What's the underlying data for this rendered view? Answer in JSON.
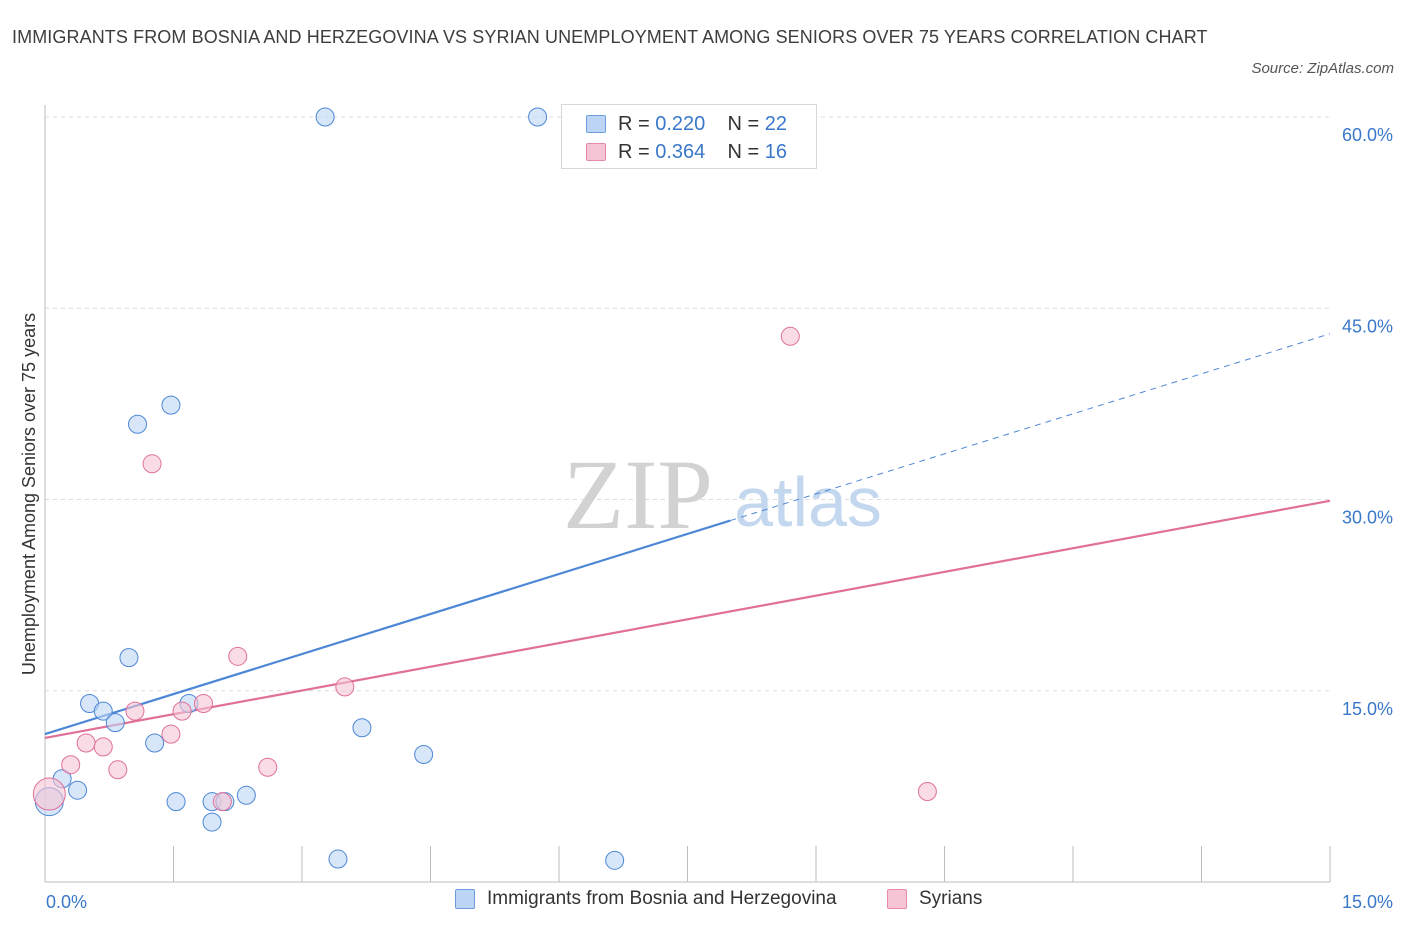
{
  "chart_data": {
    "type": "scatter",
    "title": "IMMIGRANTS FROM BOSNIA AND HERZEGOVINA VS SYRIAN UNEMPLOYMENT AMONG SENIORS OVER 75 YEARS CORRELATION CHART",
    "source": "Source: ZipAtlas.com",
    "watermark": {
      "zip": "ZIP",
      "atlas": "atlas"
    },
    "ylabel": "Unemployment Among Seniors over 75 years",
    "xlim": [
      0,
      15
    ],
    "ylim": [
      0,
      60
    ],
    "x_tick_labels": [
      "0.0%",
      "15.0%"
    ],
    "y_ticks": [
      {
        "value": 15,
        "label": "15.0%"
      },
      {
        "value": 30,
        "label": "30.0%"
      },
      {
        "value": 45,
        "label": "45.0%"
      },
      {
        "value": 60,
        "label": "60.0%"
      }
    ],
    "series": [
      {
        "name": "Immigrants from Bosnia and Herzegovina",
        "color": "#4d87d6",
        "fill": "#bcd5f4",
        "R": "0.220",
        "N": "22",
        "trend": {
          "x0": 0,
          "y0": 11.6,
          "x_solid_end": 8.0,
          "x1": 15,
          "y1": 43.0
        },
        "points": [
          {
            "x": 0.05,
            "y": 6.3,
            "s": 14
          },
          {
            "x": 0.2,
            "y": 8.1,
            "s": 9
          },
          {
            "x": 0.38,
            "y": 7.2,
            "s": 9
          },
          {
            "x": 0.52,
            "y": 14.0,
            "s": 9
          },
          {
            "x": 0.68,
            "y": 13.4,
            "s": 9
          },
          {
            "x": 0.82,
            "y": 12.5,
            "s": 9
          },
          {
            "x": 0.98,
            "y": 17.6,
            "s": 9
          },
          {
            "x": 1.08,
            "y": 35.9,
            "s": 9
          },
          {
            "x": 1.28,
            "y": 10.9,
            "s": 9
          },
          {
            "x": 1.47,
            "y": 37.4,
            "s": 9
          },
          {
            "x": 1.53,
            "y": 6.3,
            "s": 9
          },
          {
            "x": 1.68,
            "y": 14.0,
            "s": 9
          },
          {
            "x": 1.95,
            "y": 4.7,
            "s": 9
          },
          {
            "x": 1.95,
            "y": 6.3,
            "s": 9
          },
          {
            "x": 2.1,
            "y": 6.3,
            "s": 9
          },
          {
            "x": 2.35,
            "y": 6.8,
            "s": 9
          },
          {
            "x": 3.27,
            "y": 60.0,
            "s": 9
          },
          {
            "x": 3.42,
            "y": 1.8,
            "s": 9
          },
          {
            "x": 3.7,
            "y": 12.1,
            "s": 9
          },
          {
            "x": 4.42,
            "y": 10.0,
            "s": 9
          },
          {
            "x": 5.75,
            "y": 60.0,
            "s": 9
          },
          {
            "x": 6.65,
            "y": 1.7,
            "s": 9
          }
        ]
      },
      {
        "name": "Syrians",
        "color": "#e0709a",
        "fill": "#f7c4d5",
        "R": "0.364",
        "N": "16",
        "trend": {
          "x0": 0,
          "y0": 11.3,
          "x1": 15,
          "y1": 29.9
        },
        "points": [
          {
            "x": 0.05,
            "y": 6.9,
            "s": 16
          },
          {
            "x": 0.3,
            "y": 9.2,
            "s": 9
          },
          {
            "x": 0.48,
            "y": 10.9,
            "s": 9
          },
          {
            "x": 0.68,
            "y": 10.6,
            "s": 9
          },
          {
            "x": 0.85,
            "y": 8.8,
            "s": 9
          },
          {
            "x": 1.05,
            "y": 13.4,
            "s": 9
          },
          {
            "x": 1.25,
            "y": 32.8,
            "s": 9
          },
          {
            "x": 1.47,
            "y": 11.6,
            "s": 9
          },
          {
            "x": 1.6,
            "y": 13.4,
            "s": 9
          },
          {
            "x": 1.85,
            "y": 14.0,
            "s": 9
          },
          {
            "x": 2.07,
            "y": 6.3,
            "s": 9
          },
          {
            "x": 2.25,
            "y": 17.7,
            "s": 9
          },
          {
            "x": 2.6,
            "y": 9.0,
            "s": 9
          },
          {
            "x": 3.5,
            "y": 15.3,
            "s": 9
          },
          {
            "x": 8.7,
            "y": 42.8,
            "s": 9
          },
          {
            "x": 10.3,
            "y": 7.1,
            "s": 9
          }
        ]
      }
    ]
  }
}
